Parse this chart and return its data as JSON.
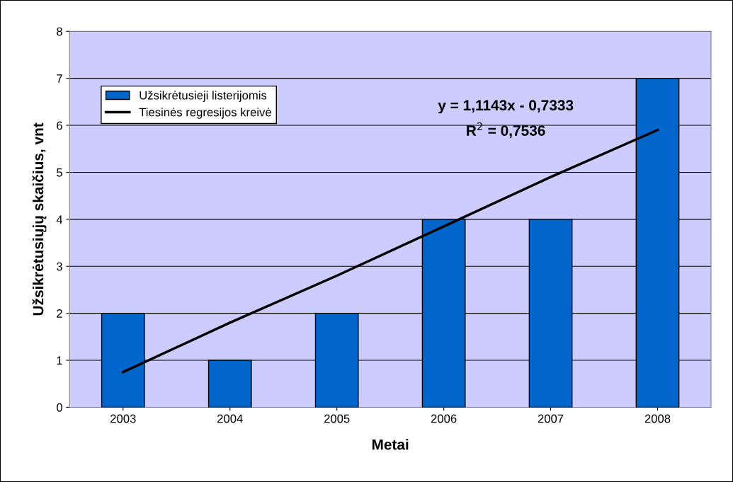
{
  "chart_data": {
    "type": "bar",
    "xlabel": "Metai",
    "ylabel": "Užsikrėtusiųjų skaičius, vnt",
    "categories": [
      "2003",
      "2004",
      "2005",
      "2006",
      "2007",
      "2008"
    ],
    "series": [
      {
        "name": "Užsikrėtusieji listerijomis",
        "color": "#0066cc",
        "values": [
          2,
          1,
          2,
          4,
          4,
          7
        ]
      },
      {
        "name": "Tiesinės regresijos kreivė",
        "type": "line",
        "color": "#000000",
        "values": [
          0.75,
          1.8,
          2.8,
          3.85,
          4.9,
          5.9
        ]
      }
    ],
    "annotations": [
      "y = 1,1143x - 0,7333",
      "R$^{2}$ = 0,7536"
    ],
    "ylim": [
      0,
      8
    ],
    "yticks": [
      0,
      1,
      2,
      3,
      4,
      5,
      6,
      7,
      8
    ],
    "grid": "y",
    "legend": "top left"
  }
}
